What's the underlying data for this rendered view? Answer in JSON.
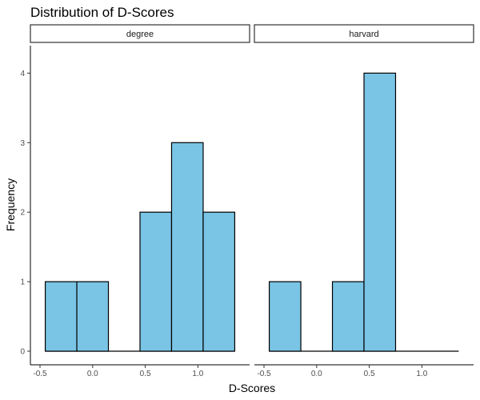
{
  "chart_data": {
    "type": "bar",
    "title": "Distribution of D-Scores",
    "xlabel": "D-Scores",
    "ylabel": "Frequency",
    "xlim": [
      -0.5,
      1.4
    ],
    "ylim": [
      0,
      4.35
    ],
    "x_ticks": [
      -0.5,
      0.0,
      0.5,
      1.0
    ],
    "x_tick_labels": [
      "-0.5",
      "0.0",
      "0.5",
      "1.0"
    ],
    "y_ticks": [
      0,
      1,
      2,
      3,
      4
    ],
    "y_tick_labels": [
      "0",
      "1",
      "2",
      "3",
      "4"
    ],
    "bin_edges": [
      -0.45,
      -0.15,
      0.15,
      0.45,
      0.75,
      1.05,
      1.35
    ],
    "fill_color": "#7ac4e5",
    "stroke_color": "#000000",
    "grid": false,
    "panels": [
      {
        "name": "degree",
        "counts": [
          1,
          1,
          0,
          2,
          3,
          2
        ]
      },
      {
        "name": "harvard",
        "counts": [
          1,
          0,
          1,
          4,
          0,
          0
        ]
      }
    ]
  }
}
